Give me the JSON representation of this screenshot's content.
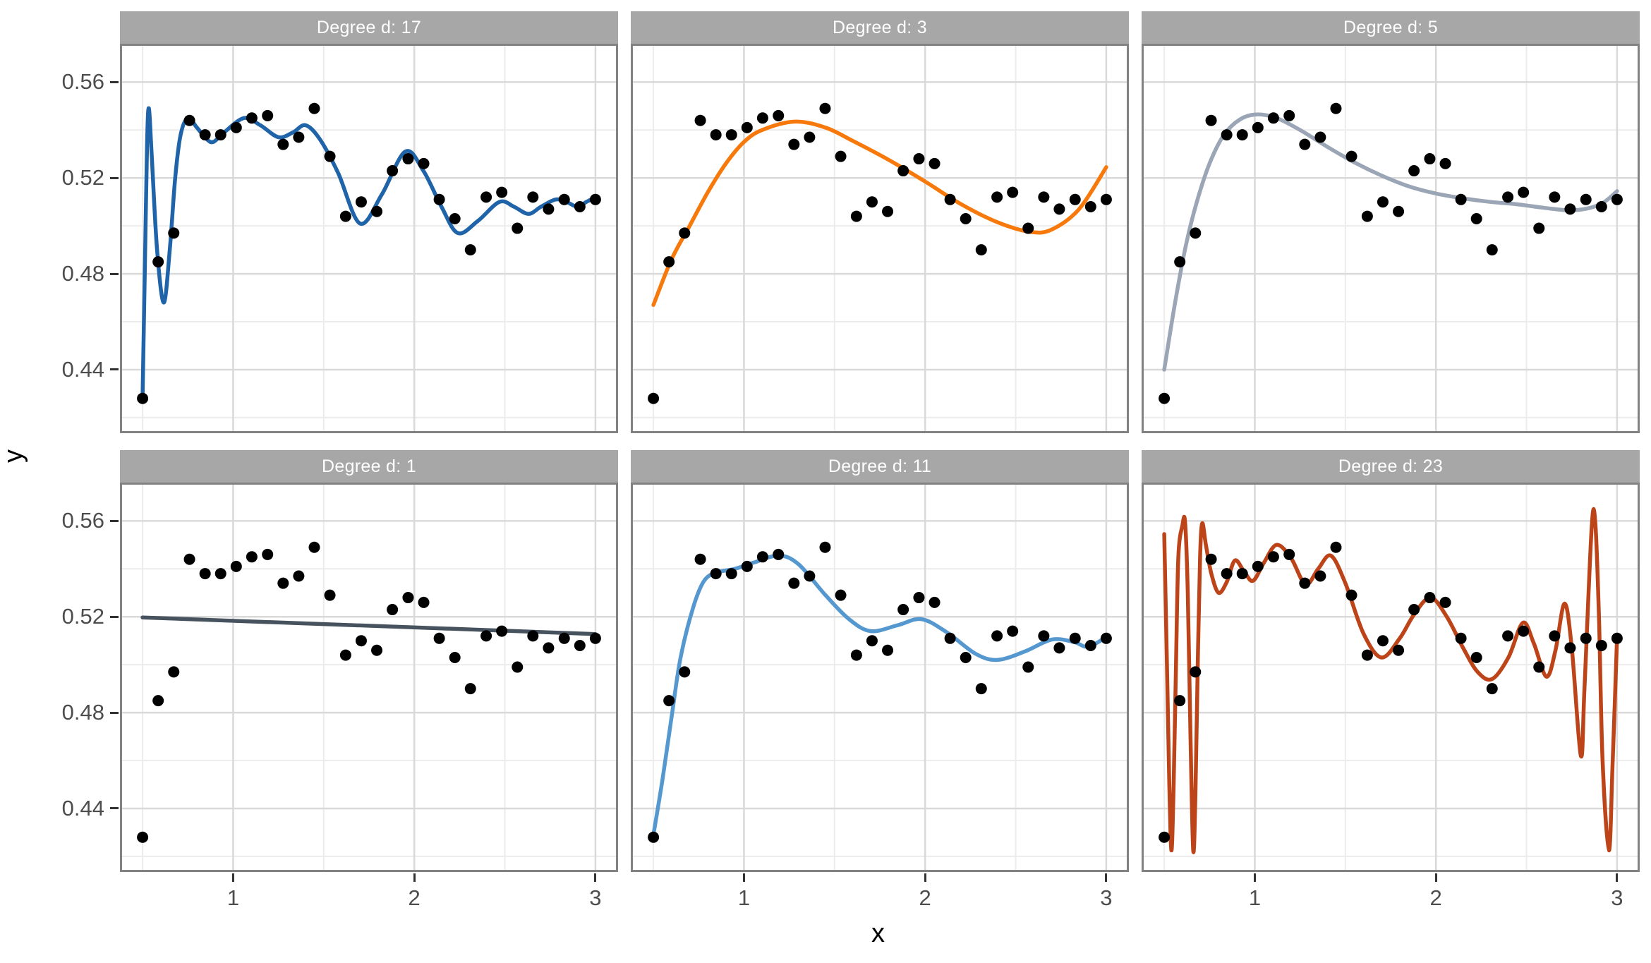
{
  "axes": {
    "x_title": "x",
    "y_title": "y",
    "x_tick_labels": [
      "1",
      "2",
      "3"
    ],
    "y_tick_labels": [
      "0.56",
      "0.52",
      "0.48",
      "0.44"
    ]
  },
  "style": {
    "strip_bg": "#a7a7a7",
    "strip_text": "#ffffff",
    "panel_bg": "#ffffff",
    "panel_border": "#828282",
    "grid_major": "#d9d9d9",
    "grid_minor": "#ececec",
    "point_color": "#000000",
    "axis_text_color": "#4d4d4d",
    "tick_mark_color": "#333333"
  },
  "chart_data": {
    "type": "scatter",
    "description": "Polynomial regression fits of varying degree d to the same 30 data points, faceted into 6 panels",
    "x_range_shown": [
      0.375,
      3.125
    ],
    "y_range_shown": [
      0.4135,
      0.576
    ],
    "x_major_ticks": [
      1,
      2,
      3
    ],
    "x_minor_ticks": [
      0.5,
      1.5,
      2.5
    ],
    "y_major_ticks": [
      0.56,
      0.52,
      0.48,
      0.44
    ],
    "y_minor_ticks": [
      0.54,
      0.5,
      0.46,
      0.42
    ],
    "grid": true,
    "points": [
      [
        0.5,
        0.428
      ],
      [
        0.586,
        0.485
      ],
      [
        0.672,
        0.497
      ],
      [
        0.759,
        0.544
      ],
      [
        0.845,
        0.538
      ],
      [
        0.931,
        0.538
      ],
      [
        1.017,
        0.541
      ],
      [
        1.103,
        0.545
      ],
      [
        1.19,
        0.546
      ],
      [
        1.276,
        0.534
      ],
      [
        1.362,
        0.537
      ],
      [
        1.448,
        0.549
      ],
      [
        1.534,
        0.529
      ],
      [
        1.621,
        0.504
      ],
      [
        1.707,
        0.51
      ],
      [
        1.793,
        0.506
      ],
      [
        1.879,
        0.523
      ],
      [
        1.966,
        0.528
      ],
      [
        2.052,
        0.526
      ],
      [
        2.138,
        0.511
      ],
      [
        2.224,
        0.503
      ],
      [
        2.31,
        0.49
      ],
      [
        2.397,
        0.512
      ],
      [
        2.483,
        0.514
      ],
      [
        2.569,
        0.499
      ],
      [
        2.655,
        0.512
      ],
      [
        2.741,
        0.507
      ],
      [
        2.828,
        0.511
      ],
      [
        2.914,
        0.508
      ],
      [
        3.0,
        0.511
      ]
    ],
    "facets": [
      {
        "label": "Degree d: 17",
        "degree": 17,
        "line_color": "#1f63a8",
        "curve": [
          [
            0.5,
            0.429
          ],
          [
            0.512,
            0.48
          ],
          [
            0.525,
            0.535
          ],
          [
            0.535,
            0.549
          ],
          [
            0.55,
            0.53
          ],
          [
            0.58,
            0.49
          ],
          [
            0.617,
            0.468
          ],
          [
            0.65,
            0.49
          ],
          [
            0.68,
            0.52
          ],
          [
            0.71,
            0.538
          ],
          [
            0.75,
            0.545
          ],
          [
            0.8,
            0.541
          ],
          [
            0.85,
            0.5365
          ],
          [
            0.89,
            0.535
          ],
          [
            0.95,
            0.539
          ],
          [
            1.06,
            0.545
          ],
          [
            1.15,
            0.542
          ],
          [
            1.25,
            0.537
          ],
          [
            1.33,
            0.539
          ],
          [
            1.4,
            0.542
          ],
          [
            1.48,
            0.536
          ],
          [
            1.58,
            0.522
          ],
          [
            1.7,
            0.501
          ],
          [
            1.82,
            0.513
          ],
          [
            1.95,
            0.531
          ],
          [
            2.05,
            0.523
          ],
          [
            2.15,
            0.508
          ],
          [
            2.24,
            0.497
          ],
          [
            2.35,
            0.502
          ],
          [
            2.47,
            0.51
          ],
          [
            2.55,
            0.508
          ],
          [
            2.63,
            0.505
          ],
          [
            2.7,
            0.508
          ],
          [
            2.78,
            0.511
          ],
          [
            2.84,
            0.51
          ],
          [
            2.9,
            0.508
          ],
          [
            2.95,
            0.51
          ],
          [
            3.0,
            0.512
          ]
        ]
      },
      {
        "label": "Degree d: 3",
        "degree": 3,
        "line_color": "#f8790b",
        "curve": [
          [
            0.5,
            0.467
          ],
          [
            0.6,
            0.486
          ],
          [
            0.7,
            0.5
          ],
          [
            0.8,
            0.514
          ],
          [
            0.9,
            0.526
          ],
          [
            1.0,
            0.535
          ],
          [
            1.1,
            0.54
          ],
          [
            1.28,
            0.5435
          ],
          [
            1.45,
            0.541
          ],
          [
            1.6,
            0.5355
          ],
          [
            1.8,
            0.5275
          ],
          [
            2.0,
            0.5185
          ],
          [
            2.2,
            0.509
          ],
          [
            2.4,
            0.5015
          ],
          [
            2.58,
            0.4975
          ],
          [
            2.7,
            0.4985
          ],
          [
            2.85,
            0.507
          ],
          [
            3.0,
            0.5245
          ]
        ]
      },
      {
        "label": "Degree d: 5",
        "degree": 5,
        "line_color": "#9aa5b6",
        "curve": [
          [
            0.5,
            0.44
          ],
          [
            0.56,
            0.468
          ],
          [
            0.62,
            0.492
          ],
          [
            0.68,
            0.51
          ],
          [
            0.75,
            0.526
          ],
          [
            0.83,
            0.538
          ],
          [
            0.92,
            0.5445
          ],
          [
            1.01,
            0.5465
          ],
          [
            1.12,
            0.545
          ],
          [
            1.25,
            0.54
          ],
          [
            1.4,
            0.533
          ],
          [
            1.55,
            0.5265
          ],
          [
            1.7,
            0.521
          ],
          [
            1.85,
            0.5165
          ],
          [
            2.0,
            0.5135
          ],
          [
            2.15,
            0.5115
          ],
          [
            2.3,
            0.51
          ],
          [
            2.45,
            0.509
          ],
          [
            2.6,
            0.5075
          ],
          [
            2.74,
            0.5065
          ],
          [
            2.85,
            0.5075
          ],
          [
            2.93,
            0.51
          ],
          [
            3.0,
            0.5145
          ]
        ]
      },
      {
        "label": "Degree d: 1",
        "degree": 1,
        "line_color": "#46525e",
        "curve": [
          [
            0.5,
            0.5197
          ],
          [
            3.0,
            0.5128
          ]
        ]
      },
      {
        "label": "Degree d: 11",
        "degree": 11,
        "line_color": "#5598d0",
        "curve": [
          [
            0.5,
            0.429
          ],
          [
            0.55,
            0.452
          ],
          [
            0.6,
            0.478
          ],
          [
            0.65,
            0.503
          ],
          [
            0.72,
            0.524
          ],
          [
            0.78,
            0.535
          ],
          [
            0.85,
            0.5385
          ],
          [
            0.95,
            0.54
          ],
          [
            1.05,
            0.5425
          ],
          [
            1.19,
            0.5455
          ],
          [
            1.3,
            0.542
          ],
          [
            1.45,
            0.529
          ],
          [
            1.58,
            0.519
          ],
          [
            1.7,
            0.514
          ],
          [
            1.85,
            0.5165
          ],
          [
            1.98,
            0.519
          ],
          [
            2.12,
            0.5135
          ],
          [
            2.28,
            0.5045
          ],
          [
            2.4,
            0.502
          ],
          [
            2.55,
            0.5055
          ],
          [
            2.7,
            0.5105
          ],
          [
            2.82,
            0.5095
          ],
          [
            2.9,
            0.5075
          ],
          [
            3.0,
            0.5115
          ]
        ]
      },
      {
        "label": "Degree d: 23",
        "degree": 23,
        "line_color": "#bc4418",
        "curve": [
          [
            0.5,
            0.5545
          ],
          [
            0.515,
            0.5
          ],
          [
            0.528,
            0.45
          ],
          [
            0.54,
            0.4225
          ],
          [
            0.552,
            0.45
          ],
          [
            0.565,
            0.5
          ],
          [
            0.578,
            0.545
          ],
          [
            0.6,
            0.558
          ],
          [
            0.615,
            0.5595
          ],
          [
            0.63,
            0.53
          ],
          [
            0.645,
            0.47
          ],
          [
            0.66,
            0.4225
          ],
          [
            0.672,
            0.445
          ],
          [
            0.685,
            0.5
          ],
          [
            0.698,
            0.545
          ],
          [
            0.71,
            0.559
          ],
          [
            0.73,
            0.55
          ],
          [
            0.76,
            0.538
          ],
          [
            0.8,
            0.53
          ],
          [
            0.845,
            0.5345
          ],
          [
            0.89,
            0.5435
          ],
          [
            0.94,
            0.539
          ],
          [
            0.99,
            0.535
          ],
          [
            1.05,
            0.5425
          ],
          [
            1.12,
            0.55
          ],
          [
            1.2,
            0.5445
          ],
          [
            1.28,
            0.5335
          ],
          [
            1.35,
            0.54
          ],
          [
            1.42,
            0.5455
          ],
          [
            1.5,
            0.534
          ],
          [
            1.6,
            0.513
          ],
          [
            1.7,
            0.503
          ],
          [
            1.8,
            0.511
          ],
          [
            1.88,
            0.521
          ],
          [
            1.97,
            0.528
          ],
          [
            2.06,
            0.52
          ],
          [
            2.15,
            0.507
          ],
          [
            2.23,
            0.497
          ],
          [
            2.31,
            0.494
          ],
          [
            2.4,
            0.503
          ],
          [
            2.48,
            0.5175
          ],
          [
            2.54,
            0.509
          ],
          [
            2.61,
            0.495
          ],
          [
            2.66,
            0.506
          ],
          [
            2.71,
            0.5255
          ],
          [
            2.75,
            0.507
          ],
          [
            2.8,
            0.462
          ],
          [
            2.82,
            0.49
          ],
          [
            2.86,
            0.5575
          ],
          [
            2.88,
            0.559
          ],
          [
            2.9,
            0.52
          ],
          [
            2.92,
            0.46
          ],
          [
            2.955,
            0.4225
          ],
          [
            2.975,
            0.458
          ],
          [
            3.0,
            0.5115
          ]
        ]
      }
    ]
  }
}
